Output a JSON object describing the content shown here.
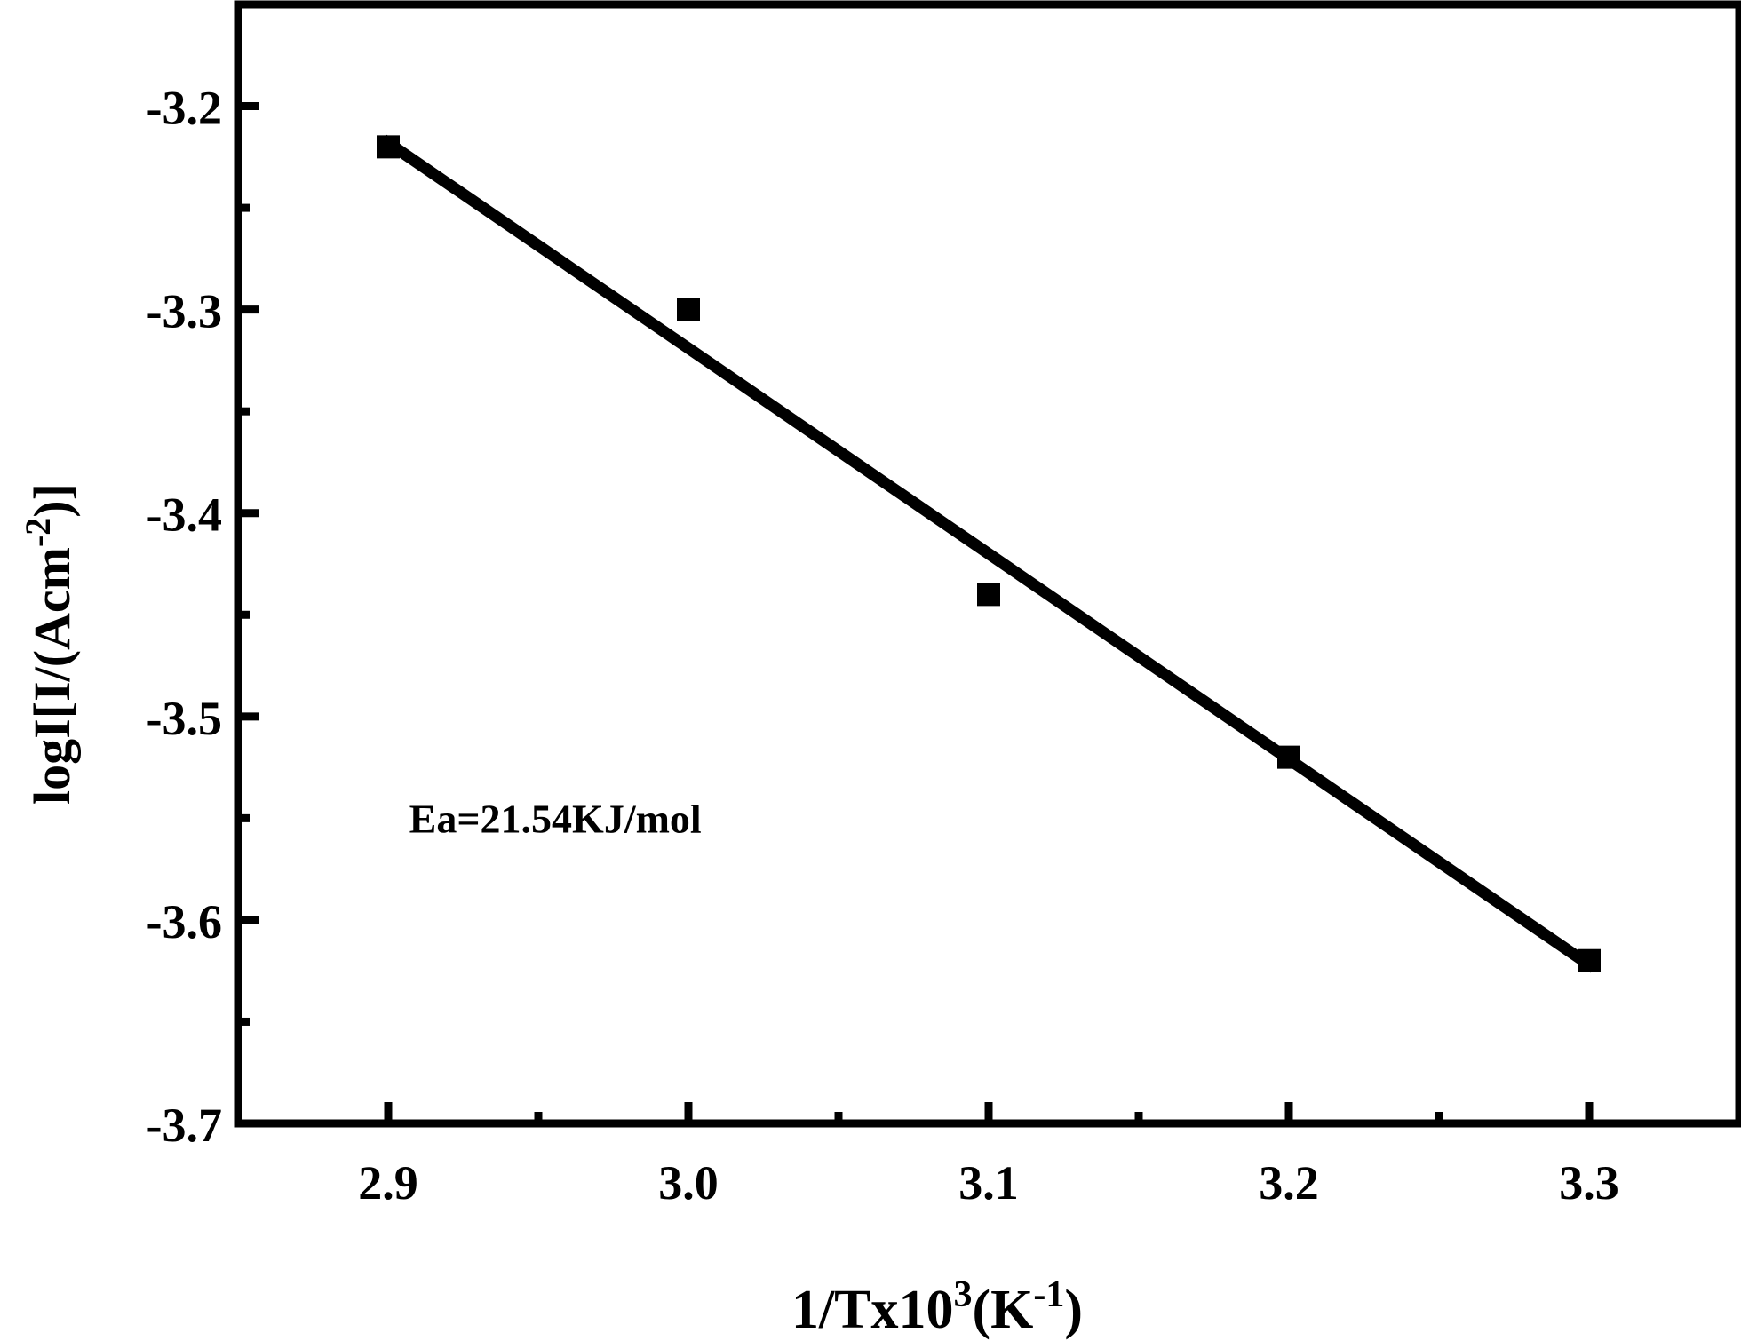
{
  "chart_data": {
    "type": "scatter",
    "title": "",
    "xlabel": {
      "parts": [
        {
          "text": "1/Tx10",
          "sup": false
        },
        {
          "text": "3",
          "sup": true
        },
        {
          "text": "(K",
          "sup": false
        },
        {
          "text": "-1",
          "sup": true
        },
        {
          "text": ")",
          "sup": false
        }
      ]
    },
    "ylabel": {
      "parts": [
        {
          "text": "logI[I/(Acm",
          "sup": false
        },
        {
          "text": "-2",
          "sup": true
        },
        {
          "text": ")]",
          "sup": false
        }
      ]
    },
    "xlim": [
      2.85,
      3.35
    ],
    "ylim": [
      -3.7,
      -3.15
    ],
    "x_ticks": [
      2.9,
      3.0,
      3.1,
      3.2,
      3.3
    ],
    "x_tick_labels": [
      "2.9",
      "3.0",
      "3.1",
      "3.2",
      "3.3"
    ],
    "x_minor_ticks": [
      2.95,
      3.05,
      3.15,
      3.25
    ],
    "y_ticks": [
      -3.7,
      -3.6,
      -3.5,
      -3.4,
      -3.3,
      -3.2
    ],
    "y_tick_labels": [
      "-3.7",
      "-3.6",
      "-3.5",
      "-3.4",
      "-3.3",
      "-3.2"
    ],
    "y_minor_ticks": [
      -3.65,
      -3.55,
      -3.45,
      -3.35,
      -3.25
    ],
    "grid": false,
    "series": [
      {
        "type": "scatter",
        "marker": "square",
        "color": "#000000",
        "x": [
          2.9,
          3.0,
          3.1,
          3.2,
          3.3
        ],
        "y": [
          -3.22,
          -3.3,
          -3.44,
          -3.52,
          -3.62
        ]
      },
      {
        "type": "line",
        "fit": "linear",
        "color": "#000000",
        "x": [
          2.9,
          3.3
        ],
        "y": [
          -3.218,
          -3.622
        ]
      }
    ],
    "annotations": [
      {
        "text": "Ea=21.54KJ/mol",
        "x": 2.907,
        "y": -3.55
      }
    ]
  }
}
